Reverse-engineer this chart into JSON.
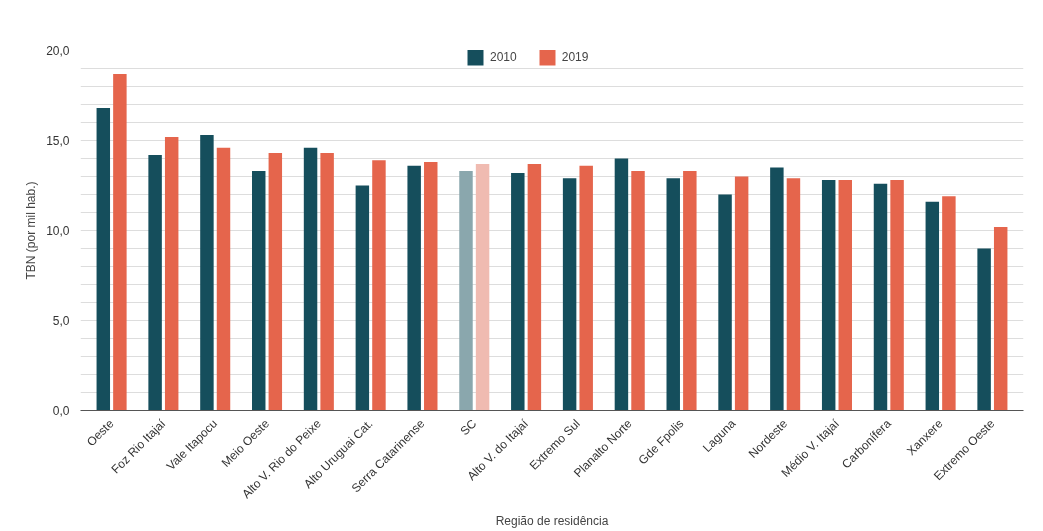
{
  "chart_data": {
    "type": "bar",
    "xlabel": "Região de residência",
    "ylabel": "TBN (por mil hab.)",
    "categories": [
      "Oeste",
      "Foz Rio Itajaí",
      "Vale Itapocu",
      "Meio Oeste",
      "Alto V. Rio do Peixe",
      "Alto Uruguai Cat.",
      "Serra Catarinense",
      "SC",
      "Alto V. do Itajaí",
      "Extremo Sul",
      "Planalto Norte",
      "Gde Fpolis",
      "Laguna",
      "Nordeste",
      "Médio V. Itajaí",
      "Carbonífera",
      "Xanxere",
      "Extremo Oeste"
    ],
    "series": [
      {
        "name": "2010",
        "color": "#154e5c",
        "colors": [
          "#154e5c",
          "#154e5c",
          "#154e5c",
          "#154e5c",
          "#154e5c",
          "#154e5c",
          "#154e5c",
          "#8aa7ad",
          "#154e5c",
          "#154e5c",
          "#154e5c",
          "#154e5c",
          "#154e5c",
          "#154e5c",
          "#154e5c",
          "#154e5c",
          "#154e5c",
          "#154e5c"
        ],
        "values": [
          16.8,
          14.2,
          15.3,
          13.3,
          14.6,
          12.5,
          13.6,
          13.3,
          13.2,
          12.9,
          14.0,
          12.9,
          12.0,
          13.5,
          12.8,
          12.6,
          11.6,
          9.0
        ]
      },
      {
        "name": "2019",
        "color": "#e5654c",
        "colors": [
          "#e5654c",
          "#e5654c",
          "#e5654c",
          "#e5654c",
          "#e5654c",
          "#e5654c",
          "#e5654c",
          "#f0bbb1",
          "#e5654c",
          "#e5654c",
          "#e5654c",
          "#e5654c",
          "#e5654c",
          "#e5654c",
          "#e5654c",
          "#e5654c",
          "#e5654c",
          "#e5654c"
        ],
        "values": [
          18.7,
          15.2,
          14.6,
          14.3,
          14.3,
          13.9,
          13.8,
          13.7,
          13.7,
          13.6,
          13.3,
          13.3,
          13.0,
          12.9,
          12.8,
          12.8,
          11.9,
          10.2
        ]
      }
    ],
    "ylim": [
      0,
      20
    ],
    "yticks": [
      {
        "value": 0,
        "label": "0,0"
      },
      {
        "value": 1,
        "label": null
      },
      {
        "value": 2,
        "label": null
      },
      {
        "value": 3,
        "label": null
      },
      {
        "value": 4,
        "label": null
      },
      {
        "value": 5,
        "label": "5,0"
      },
      {
        "value": 6,
        "label": null
      },
      {
        "value": 7,
        "label": null
      },
      {
        "value": 8,
        "label": null
      },
      {
        "value": 9,
        "label": null
      },
      {
        "value": 10,
        "label": "10,0"
      },
      {
        "value": 11,
        "label": null
      },
      {
        "value": 12,
        "label": null
      },
      {
        "value": 13,
        "label": null
      },
      {
        "value": 14,
        "label": null
      },
      {
        "value": 15,
        "label": "15,0"
      },
      {
        "value": 16,
        "label": null
      },
      {
        "value": 17,
        "label": null
      },
      {
        "value": 18,
        "label": null
      },
      {
        "value": 19,
        "label": null
      },
      {
        "value": 20,
        "label": "20,0"
      }
    ],
    "grid": "y",
    "legend": "top"
  }
}
